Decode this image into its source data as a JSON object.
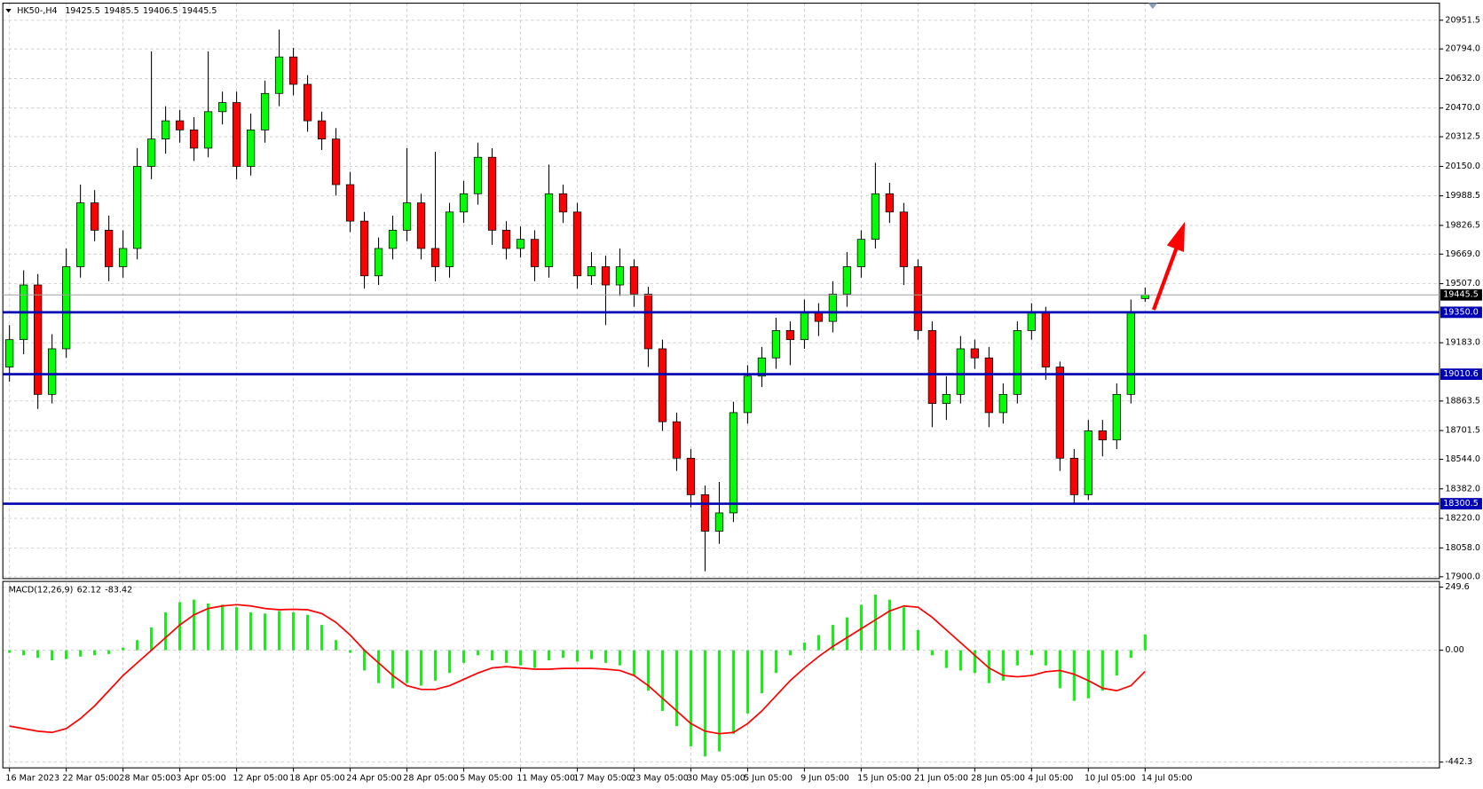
{
  "chart_data": [
    {
      "type": "candlestick",
      "title": "HK50-,H4",
      "title_values": [
        19425.5,
        19485.5,
        19406.5,
        19445.5
      ],
      "categories": [
        "16 Mar 2023",
        null,
        null,
        null,
        "22 Mar 05:00",
        null,
        null,
        null,
        "28 Mar 05:00",
        null,
        null,
        null,
        "3 Apr 05:00",
        null,
        null,
        null,
        "12 Apr 05:00",
        null,
        null,
        null,
        "18 Apr 05:00",
        null,
        null,
        null,
        "24 Apr 05:00",
        null,
        null,
        null,
        "28 Apr 05:00",
        null,
        null,
        null,
        "5 May 05:00",
        null,
        null,
        null,
        "11 May 05:00",
        null,
        null,
        null,
        "17 May 05:00",
        null,
        null,
        null,
        "23 May 05:00",
        null,
        null,
        null,
        "30 May 05:00",
        null,
        null,
        null,
        "5 Jun 05:00",
        null,
        null,
        null,
        "9 Jun 05:00",
        null,
        null,
        null,
        "15 Jun 05:00",
        null,
        null,
        null,
        "21 Jun 05:00",
        null,
        null,
        null,
        "28 Jun 05:00",
        null,
        null,
        null,
        "4 Jul 05:00",
        null,
        null,
        null,
        "10 Jul 05:00",
        null,
        null,
        null,
        "14 Jul 05:00"
      ],
      "open": [
        19050,
        19200,
        19500,
        18900,
        19150,
        19600,
        19950,
        19800,
        19600,
        19700,
        20150,
        20300,
        20400,
        20350,
        20250,
        20450,
        20500,
        20150,
        20350,
        20550,
        20750,
        20600,
        20400,
        20300,
        20050,
        19850,
        19550,
        19700,
        19800,
        19950,
        19700,
        19600,
        19900,
        20000,
        20200,
        19800,
        19700,
        19750,
        19600,
        20000,
        19900,
        19550,
        19600,
        19500,
        19600,
        19450,
        19150,
        18750,
        18550,
        18350,
        18150,
        18250,
        18800,
        19000,
        19100,
        19250,
        19200,
        19350,
        19300,
        19450,
        19600,
        19750,
        20000,
        19900,
        19600,
        19250,
        18850,
        18900,
        19150,
        19100,
        18800,
        18900,
        19250,
        19350,
        19050,
        18550,
        18350,
        18700,
        18650,
        18900,
        19425.5
      ],
      "high": [
        19280,
        19580,
        19560,
        19230,
        19700,
        20050,
        20020,
        19880,
        19800,
        20250,
        20780,
        20480,
        20460,
        20420,
        20780,
        20560,
        20560,
        20440,
        20620,
        20900,
        20800,
        20650,
        20450,
        20360,
        20120,
        19900,
        19760,
        19880,
        20250,
        20000,
        20230,
        19950,
        20070,
        20280,
        20250,
        19850,
        19820,
        19800,
        20160,
        20050,
        19950,
        19680,
        19660,
        19700,
        19640,
        19490,
        19200,
        18800,
        18600,
        18400,
        18420,
        18860,
        19060,
        19160,
        19320,
        19300,
        19420,
        19400,
        19520,
        19680,
        19800,
        20170,
        20060,
        19950,
        19640,
        19300,
        19000,
        19220,
        19200,
        19160,
        18960,
        19300,
        19400,
        19380,
        19080,
        18600,
        18760,
        18760,
        18960,
        19420,
        19485.5
      ],
      "low": [
        18970,
        19120,
        18820,
        18850,
        19100,
        19540,
        19740,
        19520,
        19540,
        19640,
        20080,
        20220,
        20280,
        20180,
        20200,
        20380,
        20080,
        20100,
        20280,
        20480,
        20540,
        20340,
        20240,
        19990,
        19790,
        19480,
        19500,
        19640,
        19740,
        19640,
        19520,
        19540,
        19840,
        19940,
        19720,
        19640,
        19650,
        19520,
        19540,
        19840,
        19480,
        19500,
        19280,
        19440,
        19380,
        19050,
        18700,
        18480,
        18280,
        17930,
        18080,
        18200,
        18740,
        18940,
        19040,
        19060,
        19150,
        19220,
        19240,
        19380,
        19540,
        19700,
        19840,
        19500,
        19200,
        18720,
        18760,
        18850,
        19040,
        18720,
        18740,
        18850,
        19200,
        18980,
        18480,
        18300,
        18320,
        18560,
        18600,
        18850,
        19406.5
      ],
      "close": [
        19200,
        19500,
        18900,
        19150,
        19600,
        19950,
        19800,
        19600,
        19700,
        20150,
        20300,
        20400,
        20350,
        20250,
        20450,
        20500,
        20150,
        20350,
        20550,
        20750,
        20600,
        20400,
        20300,
        20050,
        19850,
        19550,
        19700,
        19800,
        19950,
        19700,
        19600,
        19900,
        20000,
        20200,
        19800,
        19700,
        19750,
        19600,
        20000,
        19900,
        19550,
        19600,
        19500,
        19600,
        19450,
        19150,
        18750,
        18550,
        18350,
        18150,
        18250,
        18800,
        19000,
        19100,
        19250,
        19200,
        19350,
        19300,
        19450,
        19600,
        19750,
        20000,
        19900,
        19600,
        19250,
        18850,
        18900,
        19150,
        19100,
        18800,
        18900,
        19250,
        19350,
        19050,
        18550,
        18350,
        18700,
        18650,
        18900,
        19350,
        19445.5
      ],
      "up_color": "#00ff00",
      "down_color": "#ff0000",
      "ylim": [
        17890,
        21045
      ],
      "yticks": [
        {
          "value": 20951.5,
          "label": "20951.5"
        },
        {
          "value": 20794,
          "label": "20794.0"
        },
        {
          "value": 20632,
          "label": "20632.0"
        },
        {
          "value": 20470,
          "label": "20470.0"
        },
        20312.5,
        {
          "value": 20150,
          "label": "20150.0"
        },
        19988.5,
        19826.5,
        {
          "value": 19669,
          "label": "19669.0"
        },
        {
          "value": 19507,
          "label": "19507.0"
        },
        {
          "value": 19183,
          "label": "19183.0"
        },
        18863.5,
        18701.5,
        {
          "value": 18544,
          "label": "18544.0"
        },
        {
          "value": 18382,
          "label": "18382.0"
        },
        {
          "value": 18220,
          "label": "18220.0"
        },
        {
          "value": 18058,
          "label": "18058.0"
        },
        {
          "value": 17900,
          "label": "17900.0"
        }
      ],
      "grid": true,
      "levels": [
        {
          "value": 19350,
          "label": "19350.0"
        },
        19010.6,
        18300.5
      ],
      "level_color": "#0000b4",
      "current_price": 19445.5
    },
    {
      "type": "macd",
      "title": "MACD(12,26,9)",
      "title_values": [
        62.12,
        -83.42
      ],
      "histogram": [
        -10,
        -20,
        -30,
        -40,
        -35,
        -25,
        -20,
        -15,
        10,
        40,
        90,
        150,
        190,
        200,
        185,
        180,
        170,
        150,
        145,
        155,
        150,
        140,
        100,
        40,
        -10,
        -80,
        -130,
        -150,
        -130,
        -140,
        -120,
        -90,
        -50,
        -20,
        -40,
        -50,
        -60,
        -70,
        -40,
        -30,
        -45,
        -35,
        -50,
        -60,
        -100,
        -160,
        -240,
        -300,
        -380,
        -420,
        -400,
        -330,
        -250,
        -170,
        -90,
        -20,
        30,
        60,
        100,
        130,
        180,
        220,
        200,
        170,
        80,
        -20,
        -70,
        -80,
        -90,
        -130,
        -120,
        -60,
        -20,
        -60,
        -150,
        -200,
        -190,
        -160,
        -100,
        -30,
        62.12
      ],
      "signal": [
        -300,
        -310,
        -320,
        -325,
        -310,
        -270,
        -220,
        -160,
        -100,
        -50,
        0,
        50,
        100,
        140,
        165,
        175,
        180,
        175,
        165,
        160,
        162,
        160,
        145,
        110,
        60,
        0,
        -50,
        -100,
        -140,
        -155,
        -155,
        -140,
        -115,
        -90,
        -70,
        -65,
        -70,
        -75,
        -75,
        -72,
        -72,
        -72,
        -75,
        -80,
        -100,
        -140,
        -190,
        -240,
        -290,
        -320,
        -330,
        -325,
        -290,
        -240,
        -180,
        -120,
        -70,
        -25,
        15,
        50,
        85,
        120,
        155,
        175,
        170,
        130,
        80,
        30,
        -20,
        -70,
        -100,
        -105,
        -100,
        -85,
        -80,
        -95,
        -120,
        -150,
        -160,
        -140,
        -83.42
      ],
      "histogram_color": "#00ff00",
      "signal_color": "#ff0000",
      "ylim": [
        -465,
        272
      ],
      "yticks": [
        249.6,
        {
          "value": 0,
          "label": "0.00"
        },
        -442.3
      ]
    }
  ]
}
